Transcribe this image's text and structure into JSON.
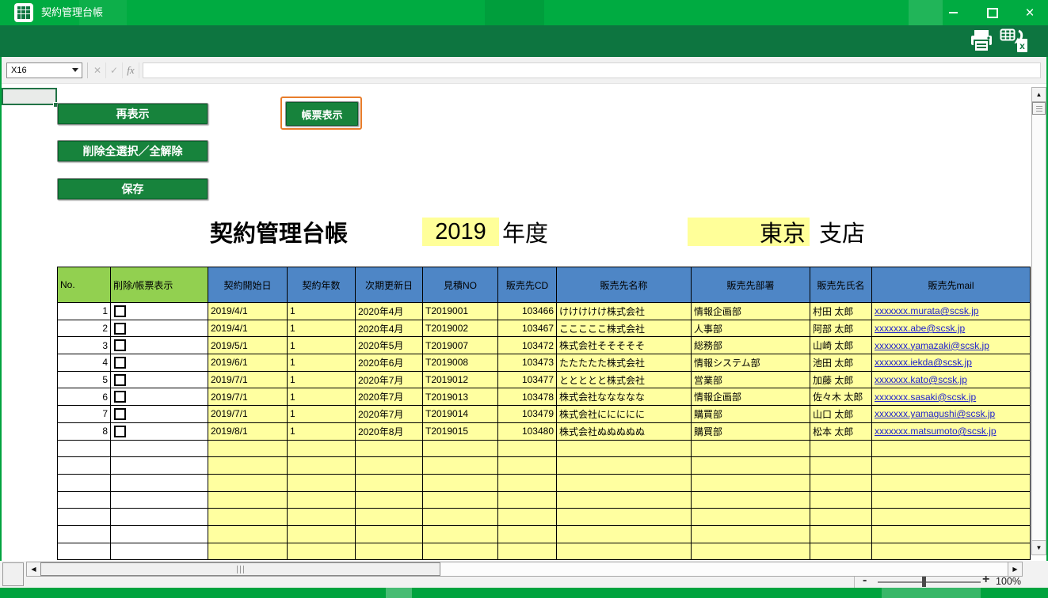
{
  "window": {
    "title": "契約管理台帳"
  },
  "icons": {
    "up_arrow": "▲",
    "down_arrow": "▼",
    "left_arrow": "◀",
    "right_arrow": "▶",
    "cancel": "✕",
    "enter": "✓",
    "fx": "fx"
  },
  "formula_bar": {
    "name_box_value": "X16",
    "formula_value": ""
  },
  "actions": {
    "redisplay": "再表示",
    "toggle_delete_all": "削除全選択／全解除",
    "save": "保存",
    "show_form": "帳票表示"
  },
  "sheet_header": {
    "title": "契約管理台帳",
    "year": "2019",
    "year_label": "年度",
    "branch": "東京",
    "branch_label": "支店"
  },
  "table": {
    "headers": [
      "No.",
      "削除/帳票表示",
      "契約開始日",
      "契約年数",
      "次期更新日",
      "見積NO",
      "販売先CD",
      "販売先名称",
      "販売先部署",
      "販売先氏名",
      "販売先mail"
    ],
    "rows": [
      {
        "no": "1",
        "start_date": "2019/4/1",
        "years": "1",
        "next_renewal": "2020年4月",
        "quote_no": "T2019001",
        "customer_cd": "103466",
        "customer_name": "けけけけけ株式会社",
        "customer_dept": "情報企画部",
        "customer_person": "村田 太郎",
        "customer_mail": "xxxxxxx.murata@scsk.jp"
      },
      {
        "no": "2",
        "start_date": "2019/4/1",
        "years": "1",
        "next_renewal": "2020年4月",
        "quote_no": "T2019002",
        "customer_cd": "103467",
        "customer_name": "こここここ株式会社",
        "customer_dept": "人事部",
        "customer_person": "阿部 太郎",
        "customer_mail": "xxxxxxx.abe@scsk.jp"
      },
      {
        "no": "3",
        "start_date": "2019/5/1",
        "years": "1",
        "next_renewal": "2020年5月",
        "quote_no": "T2019007",
        "customer_cd": "103472",
        "customer_name": "株式会社そそそそそ",
        "customer_dept": "総務部",
        "customer_person": "山崎 太郎",
        "customer_mail": "xxxxxxx.yamazaki@scsk.jp"
      },
      {
        "no": "4",
        "start_date": "2019/6/1",
        "years": "1",
        "next_renewal": "2020年6月",
        "quote_no": "T2019008",
        "customer_cd": "103473",
        "customer_name": "たたたたた株式会社",
        "customer_dept": "情報システム部",
        "customer_person": "池田 太郎",
        "customer_mail": "xxxxxxx.iekda@scsk.jp"
      },
      {
        "no": "5",
        "start_date": "2019/7/1",
        "years": "1",
        "next_renewal": "2020年7月",
        "quote_no": "T2019012",
        "customer_cd": "103477",
        "customer_name": "ととととと株式会社",
        "customer_dept": "営業部",
        "customer_person": "加藤 太郎",
        "customer_mail": "xxxxxxx.kato@scsk.jp"
      },
      {
        "no": "6",
        "start_date": "2019/7/1",
        "years": "1",
        "next_renewal": "2020年7月",
        "quote_no": "T2019013",
        "customer_cd": "103478",
        "customer_name": "株式会社ななななな",
        "customer_dept": "情報企画部",
        "customer_person": "佐々木 太郎",
        "customer_mail": "xxxxxxx.sasaki@scsk.jp"
      },
      {
        "no": "7",
        "start_date": "2019/7/1",
        "years": "1",
        "next_renewal": "2020年7月",
        "quote_no": "T2019014",
        "customer_cd": "103479",
        "customer_name": "株式会社ににににに",
        "customer_dept": "購買部",
        "customer_person": "山口 太郎",
        "customer_mail": "xxxxxxx.yamagushi@scsk.jp"
      },
      {
        "no": "8",
        "start_date": "2019/8/1",
        "years": "1",
        "next_renewal": "2020年8月",
        "quote_no": "T2019015",
        "customer_cd": "103480",
        "customer_name": "株式会社ぬぬぬぬぬ",
        "customer_dept": "購買部",
        "customer_person": "松本 太郎",
        "customer_mail": "xxxxxxx.matsumoto@scsk.jp"
      }
    ],
    "empty_rows": 7
  },
  "zoom": {
    "minus": "-",
    "plus": "+",
    "level": "100%"
  },
  "colors": {
    "titlebar_green": "#00ab41",
    "toolbar_green": "#0d7540",
    "button_green": "#17833c",
    "header_green": "#92d050",
    "header_blue": "#4e86c6",
    "cell_yellow": "#ffffa0",
    "highlight_yellow": "#ffff99",
    "link_blue": "#2122cc",
    "focus_orange": "#e87d2b",
    "status_green": "#00a33e",
    "selection_green": "#217346"
  }
}
